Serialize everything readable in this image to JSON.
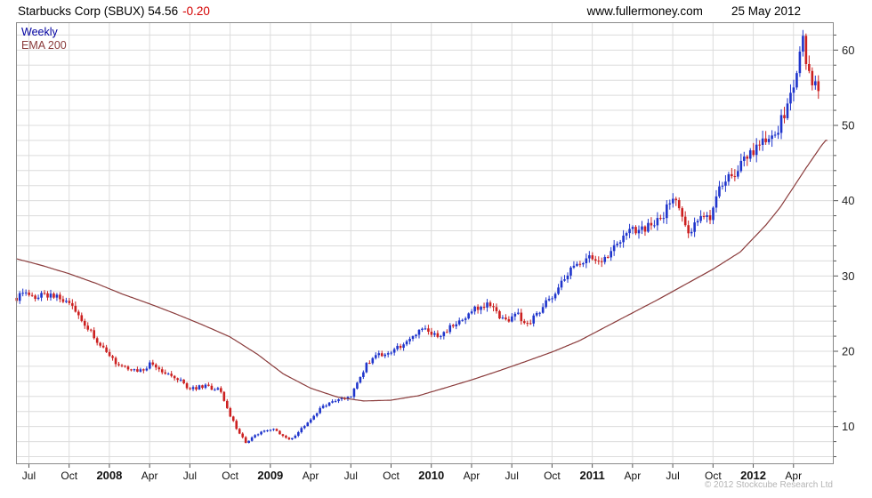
{
  "header": {
    "title": "Starbucks Corp (SBUX) 54.56",
    "change": "-0.20",
    "website": "www.fullermoney.com",
    "date": "25 May 2012"
  },
  "legend": {
    "timeframe": "Weekly",
    "overlay": "EMA 200"
  },
  "footer": {
    "copyright": "© 2012 Stockcube Research Ltd"
  },
  "colors": {
    "up": "#1f35cc",
    "down": "#cc2020",
    "ema": "#8a3b3b",
    "grid": "#dcdcdc",
    "axis": "#8a8a8a",
    "tick": "#555555",
    "change": "#d40000",
    "legend_weekly": "#0000a0",
    "copyright_gray": "#b4b4b4"
  },
  "chart_data": {
    "type": "candlestick",
    "title": "Starbucks Corp (SBUX)",
    "symbol": "SBUX",
    "last_price": 54.56,
    "change": -0.2,
    "interval": "Weekly",
    "overlay": "EMA 200",
    "source": "www.fullermoney.com",
    "as_of_date": "25 May 2012",
    "grid": true,
    "y_ticks": [
      10,
      20,
      30,
      40,
      50,
      60
    ],
    "y_minor_step": 2,
    "y_range": [
      5.0,
      63.7
    ],
    "x_range": [
      2007.42,
      2012.5
    ],
    "data_end": 2012.405,
    "ema_end": 2012.46,
    "week_step": 0.019231,
    "x_ticks": [
      {
        "t": 2007.5,
        "label": "Jul",
        "year": false
      },
      {
        "t": 2007.75,
        "label": "Oct",
        "year": false
      },
      {
        "t": 2008.0,
        "label": "2008",
        "year": true
      },
      {
        "t": 2008.25,
        "label": "Apr",
        "year": false
      },
      {
        "t": 2008.5,
        "label": "Jul",
        "year": false
      },
      {
        "t": 2008.75,
        "label": "Oct",
        "year": false
      },
      {
        "t": 2009.0,
        "label": "2009",
        "year": true
      },
      {
        "t": 2009.25,
        "label": "Apr",
        "year": false
      },
      {
        "t": 2009.5,
        "label": "Jul",
        "year": false
      },
      {
        "t": 2009.75,
        "label": "Oct",
        "year": false
      },
      {
        "t": 2010.0,
        "label": "2010",
        "year": true
      },
      {
        "t": 2010.25,
        "label": "Apr",
        "year": false
      },
      {
        "t": 2010.5,
        "label": "Jul",
        "year": false
      },
      {
        "t": 2010.75,
        "label": "Oct",
        "year": false
      },
      {
        "t": 2011.0,
        "label": "2011",
        "year": true
      },
      {
        "t": 2011.25,
        "label": "Apr",
        "year": false
      },
      {
        "t": 2011.5,
        "label": "Jul",
        "year": false
      },
      {
        "t": 2011.75,
        "label": "Oct",
        "year": false
      },
      {
        "t": 2012.0,
        "label": "2012",
        "year": true
      },
      {
        "t": 2012.25,
        "label": "Apr",
        "year": false
      }
    ],
    "price_anchors": [
      [
        2007.42,
        27.0
      ],
      [
        2007.46,
        27.8
      ],
      [
        2007.54,
        27.2
      ],
      [
        2007.62,
        27.6
      ],
      [
        2007.69,
        27.3
      ],
      [
        2007.75,
        26.3
      ],
      [
        2007.81,
        24.5
      ],
      [
        2007.88,
        23.0
      ],
      [
        2007.94,
        20.8
      ],
      [
        2008.0,
        19.2
      ],
      [
        2008.06,
        18.2
      ],
      [
        2008.13,
        17.6
      ],
      [
        2008.19,
        17.4
      ],
      [
        2008.25,
        18.2
      ],
      [
        2008.31,
        17.6
      ],
      [
        2008.38,
        17.0
      ],
      [
        2008.44,
        16.2
      ],
      [
        2008.5,
        14.8
      ],
      [
        2008.56,
        15.4
      ],
      [
        2008.63,
        15.2
      ],
      [
        2008.69,
        14.8
      ],
      [
        2008.75,
        11.5
      ],
      [
        2008.81,
        9.0
      ],
      [
        2008.85,
        7.8
      ],
      [
        2008.9,
        8.8
      ],
      [
        2008.96,
        9.3
      ],
      [
        2009.02,
        9.6
      ],
      [
        2009.08,
        8.8
      ],
      [
        2009.13,
        8.3
      ],
      [
        2009.19,
        9.6
      ],
      [
        2009.25,
        10.8
      ],
      [
        2009.31,
        12.5
      ],
      [
        2009.38,
        13.2
      ],
      [
        2009.44,
        13.8
      ],
      [
        2009.5,
        14.0
      ],
      [
        2009.56,
        16.5
      ],
      [
        2009.6,
        18.3
      ],
      [
        2009.67,
        19.5
      ],
      [
        2009.73,
        19.8
      ],
      [
        2009.79,
        20.5
      ],
      [
        2009.85,
        21.2
      ],
      [
        2009.92,
        22.5
      ],
      [
        2009.98,
        22.8
      ],
      [
        2010.04,
        21.8
      ],
      [
        2010.1,
        22.8
      ],
      [
        2010.17,
        24.2
      ],
      [
        2010.23,
        25.0
      ],
      [
        2010.29,
        25.8
      ],
      [
        2010.35,
        26.3
      ],
      [
        2010.42,
        24.8
      ],
      [
        2010.48,
        24.3
      ],
      [
        2010.54,
        24.8
      ],
      [
        2010.6,
        23.5
      ],
      [
        2010.67,
        25.3
      ],
      [
        2010.73,
        26.8
      ],
      [
        2010.79,
        28.5
      ],
      [
        2010.85,
        30.5
      ],
      [
        2010.92,
        32.0
      ],
      [
        2010.98,
        32.3
      ],
      [
        2011.04,
        31.5
      ],
      [
        2011.1,
        33.0
      ],
      [
        2011.17,
        34.5
      ],
      [
        2011.23,
        36.3
      ],
      [
        2011.29,
        36.0
      ],
      [
        2011.35,
        36.5
      ],
      [
        2011.42,
        37.5
      ],
      [
        2011.48,
        39.5
      ],
      [
        2011.52,
        40.3
      ],
      [
        2011.56,
        38.0
      ],
      [
        2011.6,
        35.5
      ],
      [
        2011.65,
        37.5
      ],
      [
        2011.69,
        38.5
      ],
      [
        2011.73,
        37.0
      ],
      [
        2011.77,
        41.0
      ],
      [
        2011.83,
        42.5
      ],
      [
        2011.88,
        43.5
      ],
      [
        2011.92,
        44.5
      ],
      [
        2011.98,
        46.0
      ],
      [
        2012.04,
        47.5
      ],
      [
        2012.1,
        48.3
      ],
      [
        2012.15,
        49.5
      ],
      [
        2012.19,
        51.5
      ],
      [
        2012.23,
        53.5
      ],
      [
        2012.27,
        56.0
      ],
      [
        2012.29,
        59.5
      ],
      [
        2012.31,
        61.0
      ],
      [
        2012.33,
        59.0
      ],
      [
        2012.35,
        56.5
      ],
      [
        2012.37,
        55.0
      ],
      [
        2012.39,
        55.3
      ],
      [
        2012.41,
        54.56
      ]
    ],
    "ema_anchors": [
      [
        2007.42,
        32.3
      ],
      [
        2007.58,
        31.4
      ],
      [
        2007.75,
        30.3
      ],
      [
        2007.92,
        29.0
      ],
      [
        2008.08,
        27.6
      ],
      [
        2008.25,
        26.3
      ],
      [
        2008.42,
        24.9
      ],
      [
        2008.58,
        23.5
      ],
      [
        2008.75,
        21.9
      ],
      [
        2008.92,
        19.6
      ],
      [
        2009.08,
        17.0
      ],
      [
        2009.25,
        15.1
      ],
      [
        2009.42,
        13.9
      ],
      [
        2009.58,
        13.4
      ],
      [
        2009.75,
        13.5
      ],
      [
        2009.92,
        14.1
      ],
      [
        2010.08,
        15.1
      ],
      [
        2010.25,
        16.2
      ],
      [
        2010.42,
        17.4
      ],
      [
        2010.58,
        18.6
      ],
      [
        2010.75,
        19.9
      ],
      [
        2010.92,
        21.4
      ],
      [
        2011.08,
        23.2
      ],
      [
        2011.25,
        25.1
      ],
      [
        2011.42,
        27.0
      ],
      [
        2011.58,
        28.9
      ],
      [
        2011.75,
        30.9
      ],
      [
        2011.92,
        33.2
      ],
      [
        2012.08,
        36.8
      ],
      [
        2012.17,
        39.2
      ],
      [
        2012.25,
        41.8
      ],
      [
        2012.33,
        44.4
      ],
      [
        2012.42,
        47.2
      ],
      [
        2012.45,
        48.0
      ]
    ]
  }
}
